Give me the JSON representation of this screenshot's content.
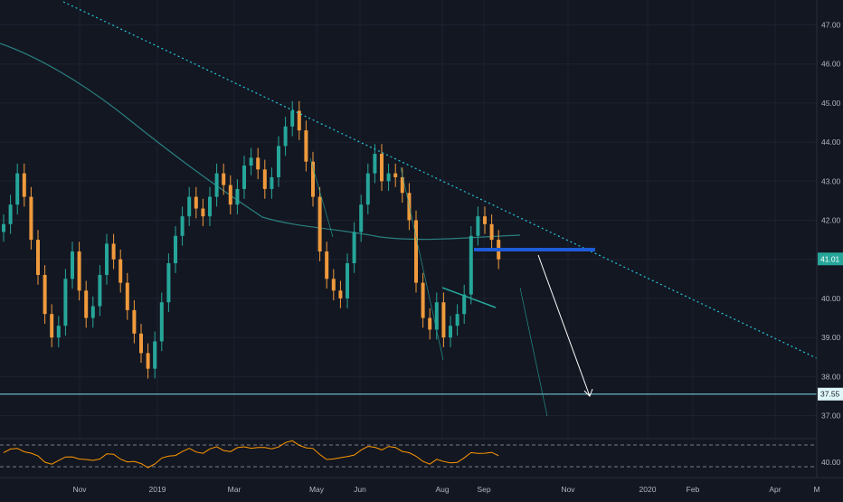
{
  "colors": {
    "background": "#131722",
    "grid": "#1e2230",
    "axis_text": "#b2b5be",
    "up_candle": "#26a69a",
    "down_candle": "#ef9a3c",
    "moving_average": "#2a7f7f",
    "trendline": "#26c6da",
    "support_line": "#80deea",
    "resistance_box": "#1e5bd6",
    "projection_arrow": "#ffffff",
    "rsi_line": "#ff9800",
    "price_tag_bg": "#26a69a",
    "support_tag_bg": "#e0f7fa"
  },
  "price_axis": {
    "ticks": [
      "47.00",
      "46.00",
      "45.00",
      "44.00",
      "43.00",
      "42.00",
      "41.00",
      "40.00",
      "39.00",
      "38.00",
      "37.00"
    ],
    "current_price_tag": "41.01",
    "support_tag": "37.55"
  },
  "rsi_axis": {
    "tick": "40.00"
  },
  "time_axis": {
    "labels": [
      "Nov",
      "2019",
      "Mar",
      "May",
      "Jun",
      "Aug",
      "Sep",
      "Nov",
      "2020",
      "Feb",
      "Apr",
      "M"
    ]
  },
  "chart_data": {
    "type": "line",
    "ylim": [
      36.6,
      47.4
    ],
    "grid": true,
    "series": [
      {
        "values": [
          41.9,
          42.4,
          43.2,
          42.6,
          41.5,
          40.6,
          39.6,
          39.0,
          39.3,
          40.5,
          41.2,
          40.2,
          39.5,
          39.8,
          40.6,
          41.4,
          41.0,
          40.4,
          39.7,
          39.1,
          38.6,
          38.2,
          38.9,
          39.9,
          40.9,
          41.6,
          42.1,
          42.6,
          42.3,
          42.1,
          42.6,
          43.2,
          42.9,
          42.4,
          42.8,
          43.4,
          43.6,
          43.3,
          42.8,
          43.1,
          43.9,
          44.4,
          44.8,
          44.3,
          43.5,
          42.6,
          41.2,
          40.5,
          40.2,
          40.0,
          40.9,
          41.7,
          42.4,
          43.2,
          43.7,
          43.0,
          43.2,
          43.1,
          42.7,
          42.0,
          40.4,
          39.5,
          39.2,
          39.9,
          39.0,
          39.3,
          39.6,
          40.1,
          41.6,
          42.1,
          41.9,
          41.5,
          41.0
        ]
      }
    ]
  }
}
